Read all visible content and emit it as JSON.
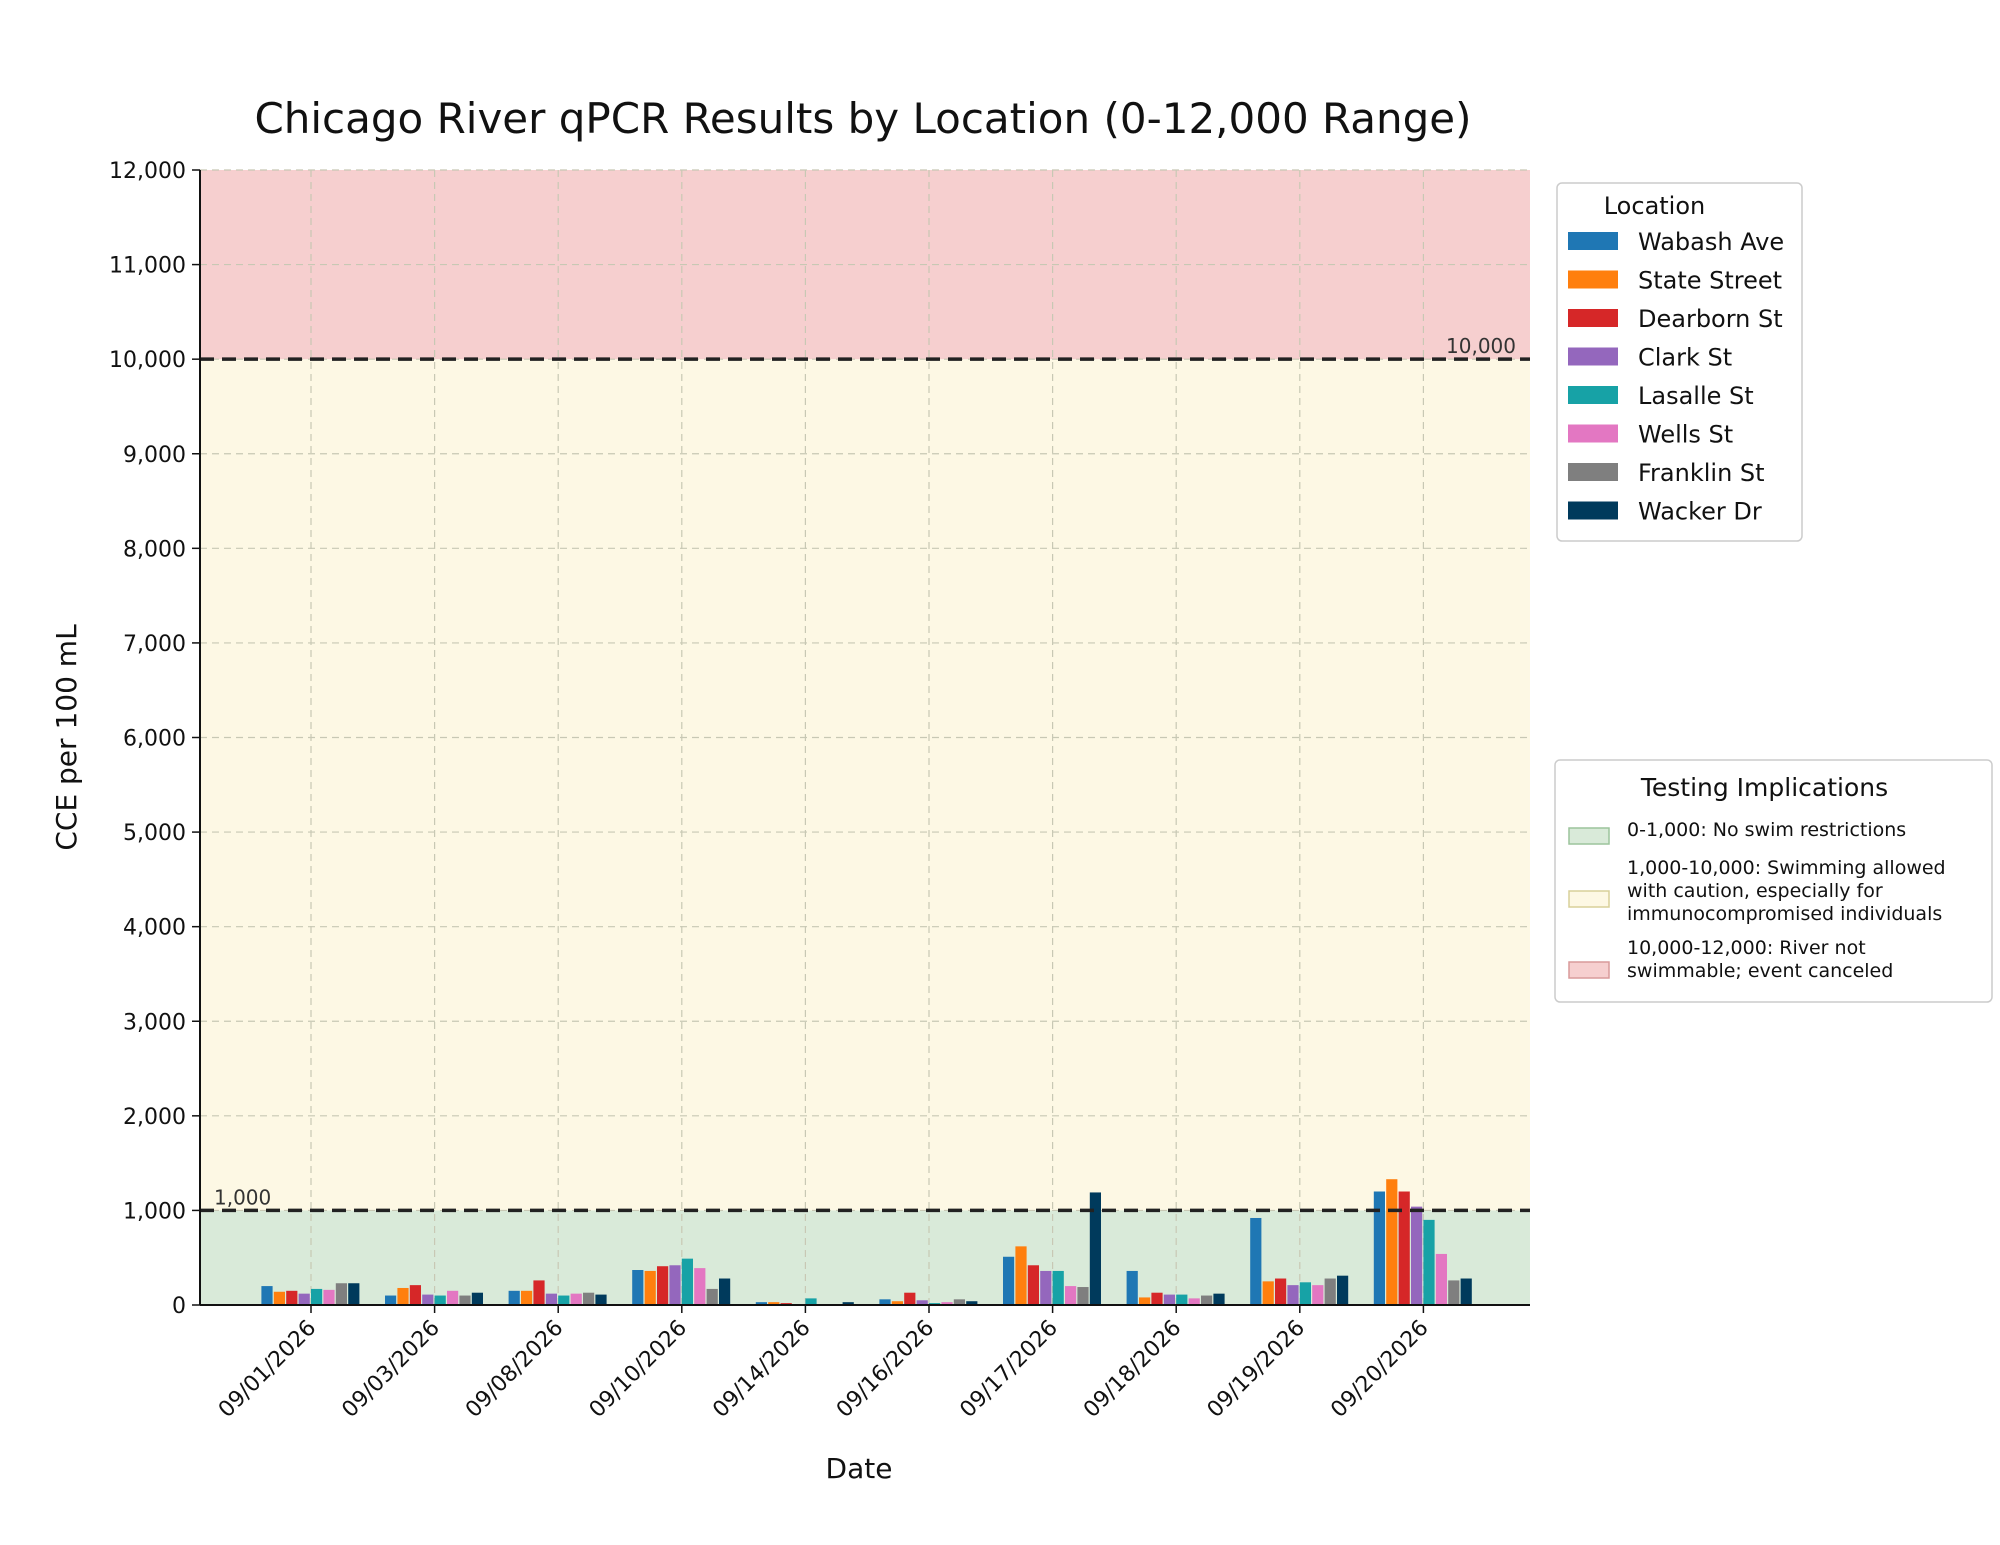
{
  "chart_data": {
    "type": "bar",
    "title": "Chicago River qPCR Results by Location (0-12,000 Range)",
    "xlabel": "Date",
    "ylabel": "CCE per 100 mL",
    "ylim": [
      0,
      12000
    ],
    "yticks": [
      0,
      1000,
      2000,
      3000,
      4000,
      5000,
      6000,
      7000,
      8000,
      9000,
      10000,
      11000,
      12000
    ],
    "ytick_labels": [
      "0",
      "1,000",
      "2,000",
      "3,000",
      "4,000",
      "5,000",
      "6,000",
      "7,000",
      "8,000",
      "9,000",
      "10,000",
      "11,000",
      "12,000"
    ],
    "grid": true,
    "categories": [
      "09/01/2026",
      "09/03/2026",
      "09/08/2026",
      "09/10/2026",
      "09/14/2026",
      "09/16/2026",
      "09/17/2026",
      "09/18/2026",
      "09/19/2026",
      "09/20/2026"
    ],
    "series": [
      {
        "name": "Wabash Ave",
        "color": "#1f77b4",
        "values": [
          200,
          100,
          150,
          370,
          30,
          60,
          510,
          360,
          920,
          1200
        ]
      },
      {
        "name": "State Street",
        "color": "#ff7f0e",
        "values": [
          140,
          180,
          150,
          360,
          30,
          40,
          620,
          80,
          250,
          1330
        ]
      },
      {
        "name": "Dearborn St",
        "color": "#d62728",
        "values": [
          150,
          210,
          260,
          410,
          20,
          130,
          420,
          130,
          280,
          1200
        ]
      },
      {
        "name": "Clark St",
        "color": "#9467bd",
        "values": [
          120,
          110,
          120,
          420,
          10,
          50,
          360,
          110,
          210,
          1040
        ]
      },
      {
        "name": "Lasalle St",
        "color": "#17a2a6",
        "values": [
          170,
          100,
          100,
          490,
          70,
          20,
          360,
          110,
          240,
          900
        ]
      },
      {
        "name": "Wells St",
        "color": "#e377c2",
        "values": [
          160,
          150,
          120,
          390,
          10,
          30,
          200,
          70,
          210,
          540
        ]
      },
      {
        "name": "Franklin St",
        "color": "#7f7f7f",
        "values": [
          230,
          100,
          130,
          170,
          10,
          60,
          190,
          100,
          280,
          260
        ]
      },
      {
        "name": "Wacker Dr",
        "color": "#003a5c",
        "values": [
          230,
          130,
          110,
          280,
          30,
          40,
          1190,
          120,
          310,
          280
        ]
      }
    ],
    "bands": [
      {
        "from": 0,
        "to": 1000,
        "color": "#d9ead9",
        "label": "0-1,000: No swim restrictions"
      },
      {
        "from": 1000,
        "to": 10000,
        "color": "#fdf8e4",
        "label": "1,000-10,000: Swimming allowed with caution, especially for immunocompromised individuals"
      },
      {
        "from": 10000,
        "to": 12000,
        "color": "#f6cfcf",
        "label": "10,000-12,000: River not swimmable; event canceled"
      }
    ],
    "thresholds": [
      {
        "value": 1000,
        "label": "1,000",
        "label_side": "left"
      },
      {
        "value": 10000,
        "label": "10,000",
        "label_side": "right"
      }
    ],
    "legend": {
      "title": "Location",
      "placement": "upper-right-outside"
    },
    "implications_legend": {
      "title": "Testing Implications",
      "placement": "right-outside",
      "items": [
        {
          "lines": [
            "0-1,000: No swim restrictions"
          ],
          "fill": "#d9ead9",
          "edge": "#9cc49c"
        },
        {
          "lines": [
            "1,000-10,000: Swimming allowed",
            "with caution, especially for",
            "immunocompromised individuals"
          ],
          "fill": "#fdf8e4",
          "edge": "#d8d09a"
        },
        {
          "lines": [
            "10,000-12,000: River not",
            "swimmable; event canceled"
          ],
          "fill": "#f6cfcf",
          "edge": "#d99a9a"
        }
      ]
    }
  }
}
